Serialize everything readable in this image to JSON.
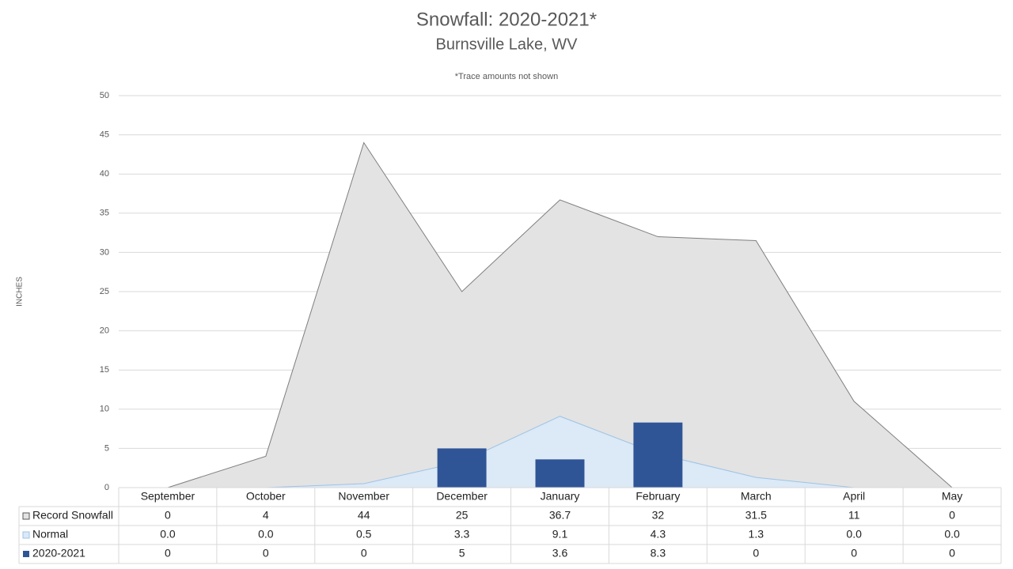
{
  "chart_data": {
    "type": "combo",
    "title": "Snowfall: 2020-2021*",
    "subtitle": "Burnsville Lake, WV",
    "annotation": "*Trace amounts not shown",
    "y_label": "INCHES",
    "categories": [
      "September",
      "October",
      "November",
      "December",
      "January",
      "February",
      "March",
      "April",
      "May"
    ],
    "series": [
      {
        "name": "Record Snowfall",
        "type": "area",
        "color": "#e3e3e3",
        "line_color": "#7f7f7f",
        "values": [
          0,
          4,
          44,
          25,
          36.7,
          32,
          31.5,
          11,
          0
        ]
      },
      {
        "name": "Normal",
        "type": "area",
        "color": "#dce9f6",
        "line_color": "#9dc3e6",
        "values": [
          0,
          0,
          0.5,
          3.3,
          9.1,
          4.3,
          1.3,
          0,
          0
        ],
        "value_labels": [
          "0.0",
          "0.0",
          "0.5",
          "3.3",
          "9.1",
          "4.3",
          "1.3",
          "0.0",
          "0.0"
        ]
      },
      {
        "name": "2020-2021",
        "type": "bar",
        "color": "#2f5597",
        "values": [
          0,
          0,
          0,
          5,
          3.6,
          8.3,
          0,
          0,
          0
        ]
      }
    ],
    "ylim": [
      0,
      50
    ],
    "yticks": [
      0,
      5,
      10,
      15,
      20,
      25,
      30,
      35,
      40,
      45,
      50
    ],
    "grid": true,
    "data_table": true
  }
}
